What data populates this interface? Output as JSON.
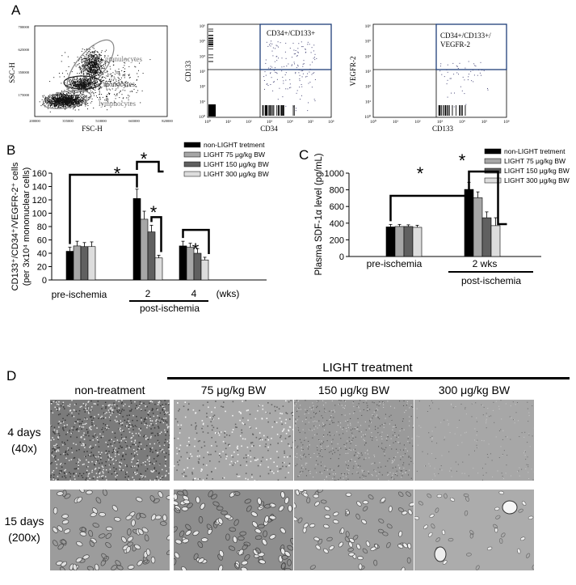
{
  "panels": {
    "a": "A",
    "b": "B",
    "c": "C",
    "d": "D"
  },
  "flow": {
    "plot1": {
      "xlabel": "FSC-H",
      "ylabel": "SSC-H",
      "xticks": [
        "200000",
        "355000",
        "510000",
        "665000",
        "820000"
      ],
      "yticks": [
        "700000",
        "625000",
        "350000",
        "175000"
      ],
      "gates": [
        "granulocytes",
        "monocytes",
        "lymphocytes"
      ]
    },
    "plot2": {
      "xlabel": "CD34",
      "ylabel": "CD133",
      "gate": "CD34+/CD133+",
      "xticks": [
        "10⁰",
        "10¹",
        "10²",
        "10³",
        "10⁴",
        "10⁵",
        "10⁶"
      ],
      "yticks": [
        "10⁶",
        "10⁵",
        "10⁴",
        "10³",
        "10²",
        "10¹",
        "10⁰"
      ]
    },
    "plot3": {
      "xlabel": "CD133",
      "ylabel": "VEGFR-2",
      "gate1": "CD34+/CD133+/",
      "gate2": "VEGFR-2",
      "xticks": [
        "10⁰",
        "10¹",
        "10²",
        "10³",
        "10⁴",
        "10⁵",
        "10⁶"
      ],
      "yticks": [
        "10⁶",
        "10⁵",
        "10⁴",
        "10³",
        "10²",
        "10¹",
        "10⁰"
      ]
    }
  },
  "colors": {
    "s1": "#000000",
    "s2": "#a6a6a6",
    "s3": "#606060",
    "s4": "#dddddd"
  },
  "chart_data": [
    {
      "type": "bar",
      "ylabel_line1": "CD133⁺/CD34⁺/VEGFR-2⁺ cells",
      "ylabel_line2": "(per 3x10⁴ mononuclear cells)",
      "categories": [
        "pre-ischemia",
        "2",
        "4"
      ],
      "unit_label": "(wks)",
      "group_label": "post-ischemia",
      "ylim": [
        0,
        160
      ],
      "yticks": [
        0,
        20,
        40,
        60,
        80,
        100,
        120,
        140,
        160
      ],
      "series": [
        {
          "name": "non-LIGHT tretment",
          "values": [
            43,
            122,
            51
          ],
          "errors": [
            6,
            14,
            7
          ]
        },
        {
          "name": "LIGHT 75 μg/kg BW",
          "values": [
            51,
            91,
            49
          ],
          "errors": [
            7,
            12,
            6
          ]
        },
        {
          "name": "LIGHT 150 μg/kg BW",
          "values": [
            50,
            72,
            40
          ],
          "errors": [
            6,
            10,
            7
          ]
        },
        {
          "name": "LIGHT 300 μg/kg BW",
          "values": [
            50,
            33,
            30
          ],
          "errors": [
            7,
            4,
            4
          ]
        }
      ],
      "significance": "*"
    },
    {
      "type": "bar",
      "ylabel": "Plasma SDF-1α level (pg/mL)",
      "categories": [
        "pre-ischemia",
        "2 wks"
      ],
      "group_label": "post-ischemia",
      "ylim": [
        0,
        1000
      ],
      "yticks": [
        0,
        200,
        400,
        600,
        800,
        1000
      ],
      "series": [
        {
          "name": "non-LIGHT tretment",
          "values": [
            355,
            805
          ],
          "errors": [
            30,
            85
          ]
        },
        {
          "name": "LIGHT 75 μg/kg BW",
          "values": [
            360,
            705
          ],
          "errors": [
            25,
            70
          ]
        },
        {
          "name": "LIGHT 150 μg/kg BW",
          "values": [
            360,
            465
          ],
          "errors": [
            20,
            70
          ]
        },
        {
          "name": "LIGHT 300 μg/kg BW",
          "values": [
            350,
            370
          ],
          "errors": [
            25,
            95
          ]
        }
      ],
      "significance": "*"
    }
  ],
  "micro": {
    "header": "LIGHT treatment",
    "columns": [
      "non-treatment",
      "75 μg/kg BW",
      "150 μg/kg BW",
      "300 μg/kg BW"
    ],
    "rows": [
      {
        "line1": "4 days",
        "line2": "(40x)"
      },
      {
        "line1": "15 days",
        "line2": "(200x)"
      }
    ]
  }
}
